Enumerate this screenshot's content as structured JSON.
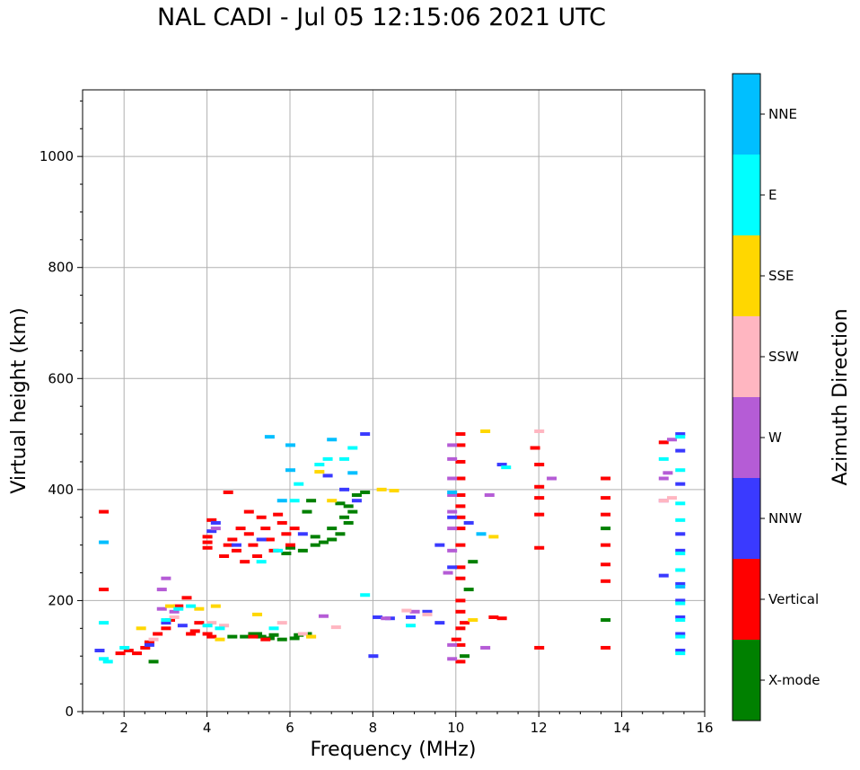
{
  "chart_data": {
    "type": "scatter",
    "title": "NAL CADI - Jul 05 12:15:06 2021 UTC",
    "xlabel": "Frequency (MHz)",
    "ylabel": "Virtual height (km)",
    "xlim": [
      1,
      16
    ],
    "ylim": [
      0,
      1120
    ],
    "xticks": [
      2,
      4,
      6,
      8,
      10,
      12,
      14,
      16
    ],
    "yticks": [
      0,
      200,
      400,
      600,
      800,
      1000
    ],
    "grid": true,
    "colorbar": {
      "label": "Azimuth Direction",
      "categories": [
        {
          "name": "X-mode",
          "color": "#008000"
        },
        {
          "name": "Vertical",
          "color": "#ff0000"
        },
        {
          "name": "NNW",
          "color": "#3a3aff"
        },
        {
          "name": "W",
          "color": "#b55cd6"
        },
        {
          "name": "SSW",
          "color": "#ffb6c1"
        },
        {
          "name": "SSE",
          "color": "#ffd700"
        },
        {
          "name": "E",
          "color": "#00ffff"
        },
        {
          "name": "NNE",
          "color": "#00bfff"
        }
      ]
    },
    "series": [
      {
        "name": "X-mode",
        "points": [
          [
            2.7,
            90
          ],
          [
            4.6,
            135
          ],
          [
            4.9,
            135
          ],
          [
            5.1,
            140
          ],
          [
            5.3,
            135
          ],
          [
            5.5,
            132
          ],
          [
            5.8,
            130
          ],
          [
            6.1,
            132
          ],
          [
            6.2,
            138
          ],
          [
            6.4,
            140
          ],
          [
            5.9,
            285
          ],
          [
            6.0,
            295
          ],
          [
            6.3,
            290
          ],
          [
            6.6,
            300
          ],
          [
            6.8,
            305
          ],
          [
            7.0,
            310
          ],
          [
            7.2,
            320
          ],
          [
            7.4,
            340
          ],
          [
            7.5,
            360
          ],
          [
            7.4,
            370
          ],
          [
            7.2,
            375
          ],
          [
            6.5,
            380
          ],
          [
            6.4,
            360
          ],
          [
            6.6,
            315
          ],
          [
            7.0,
            330
          ],
          [
            7.3,
            350
          ],
          [
            7.6,
            390
          ],
          [
            7.8,
            395
          ],
          [
            10.2,
            100
          ],
          [
            10.3,
            220
          ],
          [
            10.4,
            270
          ],
          [
            13.6,
            165
          ],
          [
            13.6,
            330
          ],
          [
            5.2,
            140
          ],
          [
            5.6,
            138
          ]
        ]
      },
      {
        "name": "Vertical",
        "points": [
          [
            1.5,
            360
          ],
          [
            1.5,
            220
          ],
          [
            1.9,
            105
          ],
          [
            2.1,
            110
          ],
          [
            2.3,
            105
          ],
          [
            2.5,
            115
          ],
          [
            2.6,
            125
          ],
          [
            2.8,
            140
          ],
          [
            3.0,
            150
          ],
          [
            3.1,
            165
          ],
          [
            3.3,
            190
          ],
          [
            3.5,
            205
          ],
          [
            3.6,
            140
          ],
          [
            3.7,
            145
          ],
          [
            3.8,
            160
          ],
          [
            4.0,
            140
          ],
          [
            4.1,
            135
          ],
          [
            4.0,
            295
          ],
          [
            4.0,
            305
          ],
          [
            4.0,
            315
          ],
          [
            4.1,
            345
          ],
          [
            4.4,
            280
          ],
          [
            4.5,
            300
          ],
          [
            4.6,
            310
          ],
          [
            4.7,
            290
          ],
          [
            4.8,
            330
          ],
          [
            4.9,
            270
          ],
          [
            5.0,
            320
          ],
          [
            5.1,
            300
          ],
          [
            5.2,
            280
          ],
          [
            5.3,
            350
          ],
          [
            5.4,
            330
          ],
          [
            5.5,
            310
          ],
          [
            5.6,
            290
          ],
          [
            5.7,
            355
          ],
          [
            5.8,
            340
          ],
          [
            5.9,
            320
          ],
          [
            6.0,
            300
          ],
          [
            6.1,
            330
          ],
          [
            5.0,
            360
          ],
          [
            4.5,
            395
          ],
          [
            5.1,
            135
          ],
          [
            5.4,
            130
          ],
          [
            10.1,
            90
          ],
          [
            10.1,
            120
          ],
          [
            10.1,
            150
          ],
          [
            10.1,
            180
          ],
          [
            10.1,
            200
          ],
          [
            10.1,
            240
          ],
          [
            10.1,
            260
          ],
          [
            10.1,
            300
          ],
          [
            10.1,
            330
          ],
          [
            10.1,
            350
          ],
          [
            10.1,
            370
          ],
          [
            10.1,
            390
          ],
          [
            10.1,
            420
          ],
          [
            10.1,
            450
          ],
          [
            10.1,
            480
          ],
          [
            10.1,
            500
          ],
          [
            10.0,
            130
          ],
          [
            10.2,
            160
          ],
          [
            10.9,
            170
          ],
          [
            11.1,
            168
          ],
          [
            12.0,
            115
          ],
          [
            12.0,
            295
          ],
          [
            12.0,
            355
          ],
          [
            12.0,
            385
          ],
          [
            12.0,
            405
          ],
          [
            12.0,
            445
          ],
          [
            11.9,
            475
          ],
          [
            13.6,
            420
          ],
          [
            13.6,
            385
          ],
          [
            13.6,
            355
          ],
          [
            13.6,
            300
          ],
          [
            13.6,
            265
          ],
          [
            13.6,
            235
          ],
          [
            13.6,
            115
          ],
          [
            15.0,
            485
          ]
        ]
      },
      {
        "name": "NNW",
        "points": [
          [
            1.4,
            110
          ],
          [
            2.6,
            120
          ],
          [
            3.0,
            160
          ],
          [
            3.4,
            155
          ],
          [
            4.1,
            325
          ],
          [
            4.2,
            340
          ],
          [
            4.7,
            300
          ],
          [
            5.3,
            310
          ],
          [
            6.3,
            320
          ],
          [
            6.9,
            425
          ],
          [
            7.3,
            400
          ],
          [
            7.6,
            380
          ],
          [
            7.8,
            500
          ],
          [
            8.0,
            100
          ],
          [
            8.1,
            170
          ],
          [
            8.4,
            168
          ],
          [
            8.9,
            170
          ],
          [
            9.3,
            180
          ],
          [
            9.6,
            160
          ],
          [
            9.6,
            300
          ],
          [
            9.9,
            260
          ],
          [
            9.9,
            350
          ],
          [
            10.3,
            340
          ],
          [
            11.1,
            445
          ],
          [
            15.0,
            245
          ],
          [
            15.4,
            110
          ],
          [
            15.4,
            140
          ],
          [
            15.4,
            170
          ],
          [
            15.4,
            200
          ],
          [
            15.4,
            230
          ],
          [
            15.4,
            290
          ],
          [
            15.4,
            320
          ],
          [
            15.4,
            410
          ],
          [
            15.4,
            470
          ],
          [
            15.4,
            500
          ]
        ]
      },
      {
        "name": "W",
        "points": [
          [
            2.9,
            220
          ],
          [
            3.0,
            240
          ],
          [
            2.9,
            185
          ],
          [
            3.2,
            180
          ],
          [
            4.2,
            330
          ],
          [
            6.8,
            172
          ],
          [
            8.3,
            168
          ],
          [
            9.0,
            180
          ],
          [
            9.9,
            95
          ],
          [
            9.9,
            120
          ],
          [
            9.8,
            250
          ],
          [
            9.9,
            290
          ],
          [
            9.9,
            330
          ],
          [
            9.9,
            360
          ],
          [
            9.9,
            390
          ],
          [
            9.9,
            420
          ],
          [
            9.9,
            455
          ],
          [
            9.9,
            480
          ],
          [
            10.7,
            115
          ],
          [
            10.8,
            390
          ],
          [
            12.3,
            420
          ],
          [
            15.0,
            420
          ],
          [
            15.1,
            430
          ],
          [
            15.0,
            380
          ],
          [
            15.2,
            490
          ]
        ]
      },
      {
        "name": "SSW",
        "points": [
          [
            2.7,
            130
          ],
          [
            3.2,
            170
          ],
          [
            4.1,
            160
          ],
          [
            4.4,
            155
          ],
          [
            6.3,
            140
          ],
          [
            6.5,
            135
          ],
          [
            7.1,
            152
          ],
          [
            8.8,
            182
          ],
          [
            9.3,
            175
          ],
          [
            12.0,
            505
          ],
          [
            15.0,
            380
          ],
          [
            15.2,
            385
          ],
          [
            5.8,
            160
          ]
        ]
      },
      {
        "name": "SSE",
        "points": [
          [
            2.4,
            150
          ],
          [
            3.1,
            190
          ],
          [
            3.8,
            185
          ],
          [
            4.2,
            190
          ],
          [
            4.3,
            130
          ],
          [
            5.2,
            175
          ],
          [
            6.5,
            135
          ],
          [
            6.7,
            432
          ],
          [
            7.0,
            380
          ],
          [
            8.2,
            400
          ],
          [
            8.5,
            398
          ],
          [
            10.4,
            165
          ],
          [
            10.7,
            505
          ],
          [
            10.9,
            315
          ]
        ]
      },
      {
        "name": "E",
        "points": [
          [
            1.5,
            95
          ],
          [
            1.6,
            90
          ],
          [
            1.5,
            160
          ],
          [
            2.0,
            115
          ],
          [
            3.0,
            165
          ],
          [
            3.3,
            185
          ],
          [
            3.6,
            190
          ],
          [
            4.0,
            155
          ],
          [
            4.3,
            150
          ],
          [
            5.3,
            270
          ],
          [
            5.6,
            150
          ],
          [
            5.7,
            290
          ],
          [
            6.1,
            380
          ],
          [
            6.2,
            410
          ],
          [
            6.7,
            445
          ],
          [
            6.9,
            455
          ],
          [
            7.3,
            455
          ],
          [
            7.5,
            475
          ],
          [
            7.8,
            210
          ],
          [
            8.9,
            155
          ],
          [
            11.2,
            440
          ],
          [
            15.4,
            105
          ],
          [
            15.4,
            135
          ],
          [
            15.4,
            165
          ],
          [
            15.4,
            195
          ],
          [
            15.4,
            255
          ],
          [
            15.4,
            285
          ],
          [
            15.4,
            345
          ],
          [
            15.4,
            375
          ],
          [
            15.4,
            435
          ],
          [
            15.4,
            495
          ],
          [
            15.0,
            455
          ]
        ]
      },
      {
        "name": "NNE",
        "points": [
          [
            1.5,
            305
          ],
          [
            5.5,
            495
          ],
          [
            5.8,
            380
          ],
          [
            6.0,
            435
          ],
          [
            6.0,
            480
          ],
          [
            7.0,
            490
          ],
          [
            7.5,
            430
          ],
          [
            9.9,
            395
          ],
          [
            10.6,
            320
          ],
          [
            15.4,
            225
          ]
        ]
      }
    ]
  }
}
